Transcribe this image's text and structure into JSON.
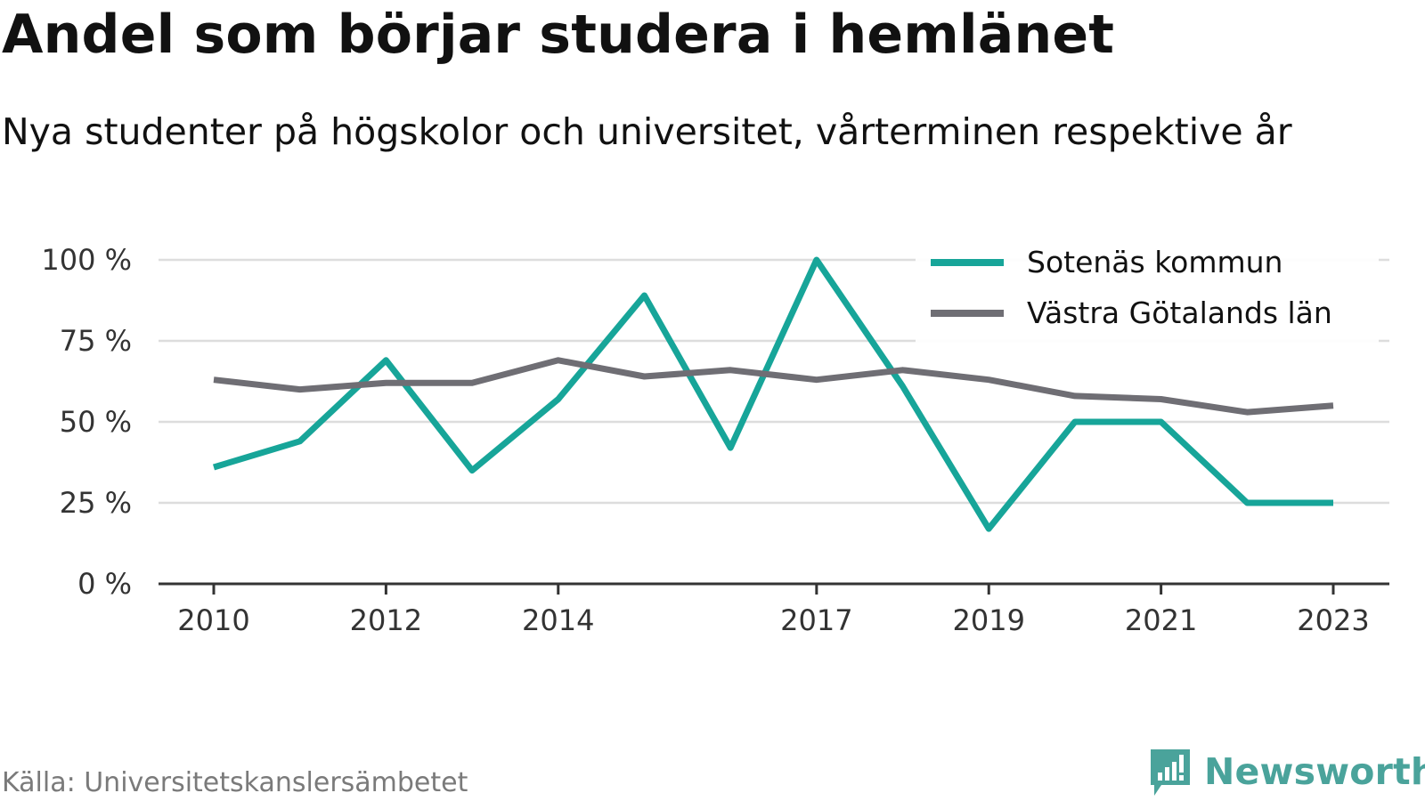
{
  "header": {
    "title": "Andel som börjar studera i hemlänet",
    "subtitle": "Nya studenter på högskolor och universitet, vårterminen respektive år"
  },
  "footer": {
    "source": "Källa: Universitetskanslersämbetet",
    "brand": "Newsworthy"
  },
  "colors": {
    "teal": "#17a599",
    "gray": "#6f6e74",
    "grid": "#dddddd",
    "axis": "#333333",
    "brand": "#4aa39b"
  },
  "chart_data": {
    "type": "line",
    "x": [
      2010,
      2011,
      2012,
      2013,
      2014,
      2015,
      2016,
      2017,
      2018,
      2019,
      2020,
      2021,
      2022,
      2023
    ],
    "x_tick_labels": [
      "2010",
      "2012",
      "2014",
      "2017",
      "2019",
      "2021",
      "2023"
    ],
    "y_tick_labels": [
      "100 %",
      "75 %",
      "50 %",
      "25 %",
      "0 %"
    ],
    "ylim": [
      0,
      100
    ],
    "grid": true,
    "legend_position": "top-right",
    "series": [
      {
        "name": "Sotenäs kommun",
        "color": "#17a599",
        "values": [
          36,
          44,
          69,
          35,
          57,
          89,
          42,
          100,
          61,
          17,
          50,
          50,
          25,
          25
        ]
      },
      {
        "name": "Västra Götalands län",
        "color": "#6f6e74",
        "values": [
          63,
          60,
          62,
          62,
          69,
          64,
          66,
          63,
          66,
          63,
          58,
          57,
          53,
          55
        ]
      }
    ]
  }
}
